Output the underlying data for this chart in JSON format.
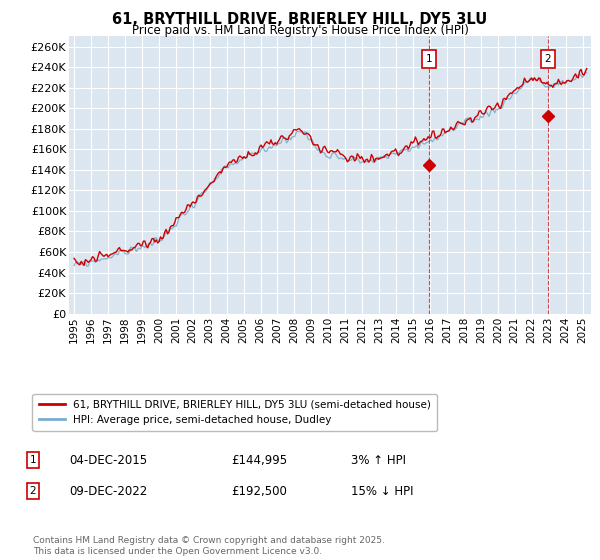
{
  "title": "61, BRYTHILL DRIVE, BRIERLEY HILL, DY5 3LU",
  "subtitle": "Price paid vs. HM Land Registry's House Price Index (HPI)",
  "ylabel_ticks": [
    "£0",
    "£20K",
    "£40K",
    "£60K",
    "£80K",
    "£100K",
    "£120K",
    "£140K",
    "£160K",
    "£180K",
    "£200K",
    "£220K",
    "£240K",
    "£260K"
  ],
  "ytick_values": [
    0,
    20000,
    40000,
    60000,
    80000,
    100000,
    120000,
    140000,
    160000,
    180000,
    200000,
    220000,
    240000,
    260000
  ],
  "ylim": [
    0,
    270000
  ],
  "xlim_start": 1994.7,
  "xlim_end": 2025.5,
  "line1_color": "#cc0000",
  "line2_color": "#7aadcc",
  "line1_label": "61, BRYTHILL DRIVE, BRIERLEY HILL, DY5 3LU (semi-detached house)",
  "line2_label": "HPI: Average price, semi-detached house, Dudley",
  "marker1_date": 2015.92,
  "marker1_price": 144995,
  "marker2_date": 2022.94,
  "marker2_price": 192500,
  "vline_color": "#cc0000",
  "marker_box_color": "#cc0000",
  "background_color": "#ffffff",
  "plot_bg_color": "#dce6f0",
  "grid_color": "#ffffff"
}
